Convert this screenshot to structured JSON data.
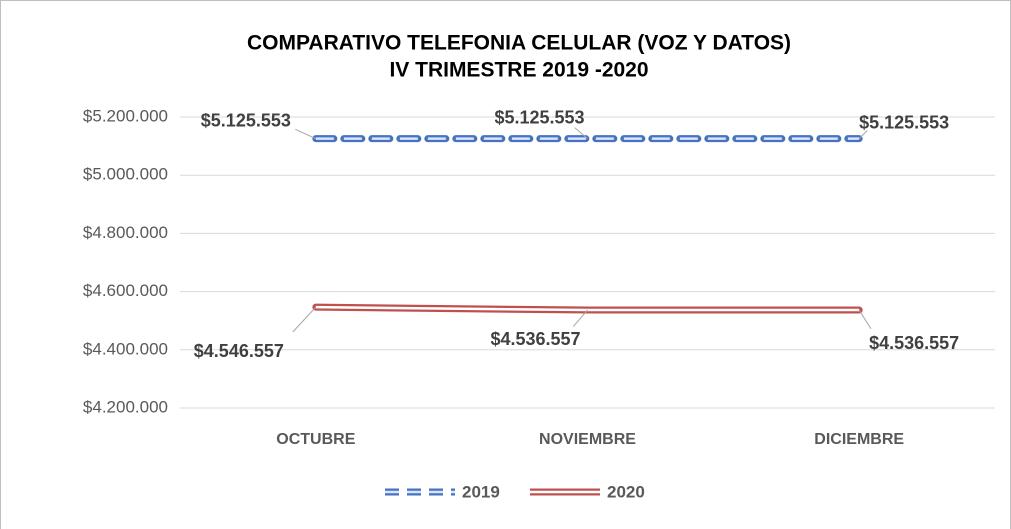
{
  "chart_data": {
    "type": "line",
    "title": "COMPARATIVO TELEFONIA CELULAR (VOZ Y DATOS)",
    "subtitle": "IV TRIMESTRE 2019 -2020",
    "categories": [
      "OCTUBRE",
      "NOVIEMBRE",
      "DICIEMBRE"
    ],
    "series": [
      {
        "name": "2019",
        "color": "#4472c4",
        "dashed": true,
        "values": [
          5125553,
          5125553,
          5125553
        ],
        "value_labels": [
          "$5.125.553",
          "$5.125.553",
          "$5.125.553"
        ]
      },
      {
        "name": "2020",
        "color": "#c0504d",
        "dashed": false,
        "values": [
          4546557,
          4536557,
          4536557
        ],
        "value_labels": [
          "$4.546.557",
          "$4.536.557",
          "$4.536.557"
        ]
      }
    ],
    "ylim": [
      4200000,
      5200000
    ],
    "yticks": [
      {
        "value": 4200000,
        "label": "$4.200.000"
      },
      {
        "value": 4400000,
        "label": "$4.400.000"
      },
      {
        "value": 4600000,
        "label": "$4.600.000"
      },
      {
        "value": 4800000,
        "label": "$4.800.000"
      },
      {
        "value": 5000000,
        "label": "$5.000.000"
      },
      {
        "value": 5200000,
        "label": "$5.200.000"
      }
    ],
    "grid": true,
    "legend": "bottom"
  }
}
